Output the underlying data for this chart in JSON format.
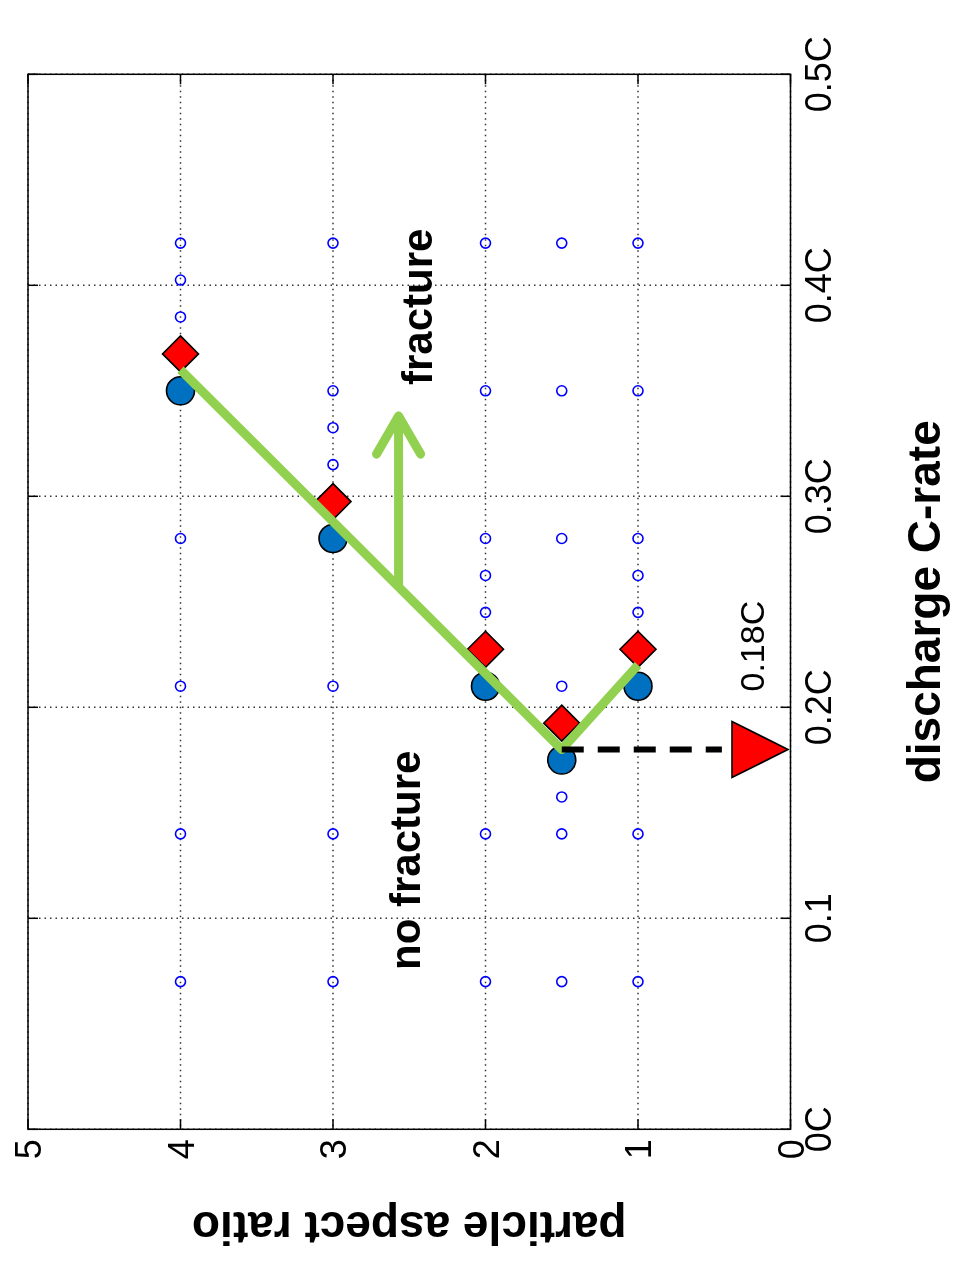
{
  "chart_data": {
    "type": "scatter",
    "xlabel": "particle aspect ratio",
    "ylabel": "discharge C-rate",
    "xlim": [
      5,
      0
    ],
    "ylim": [
      0,
      0.5
    ],
    "xticks": [
      5,
      4,
      3,
      2,
      1,
      0
    ],
    "yticks": [
      {
        "value": 0,
        "label": "0C"
      },
      {
        "value": 0.1,
        "label": "0.1"
      },
      {
        "value": 0.2,
        "label": "0.2C"
      },
      {
        "value": 0.3,
        "label": "0.3C"
      },
      {
        "value": 0.4,
        "label": "0.4C"
      },
      {
        "value": 0.5,
        "label": "0.5C"
      }
    ],
    "grid": true,
    "series": [
      {
        "type": "scatter",
        "marker": "circle",
        "color": "#0000ff",
        "x": [
          4,
          4,
          4,
          4,
          4,
          4,
          4,
          3,
          3,
          3,
          3,
          3,
          3,
          3,
          2,
          2,
          2,
          2,
          2,
          2,
          2,
          1.5,
          1.5,
          1.5,
          1.5,
          1.5,
          1.5,
          1.5,
          1,
          1,
          1,
          1,
          1,
          1,
          1
        ],
        "values": [
          0.07,
          0.14,
          0.21,
          0.28,
          0.385,
          0.4025,
          0.42,
          0.07,
          0.14,
          0.21,
          0.315,
          0.3325,
          0.35,
          0.42,
          0.07,
          0.14,
          0.245,
          0.2625,
          0.28,
          0.35,
          0.42,
          0.07,
          0.14,
          0.1575,
          0.21,
          0.28,
          0.35,
          0.42,
          0.07,
          0.14,
          0.245,
          0.2625,
          0.28,
          0.35,
          0.42
        ]
      },
      {
        "type": "scatter",
        "marker": "circle",
        "color": "#0070c0",
        "x": [
          4,
          3,
          2,
          1.5,
          1
        ],
        "values": [
          0.35,
          0.28,
          0.21,
          0.175,
          0.21
        ]
      },
      {
        "type": "scatter",
        "marker": "diamond",
        "color": "#ff0000",
        "x": [
          4,
          3,
          2,
          1.5,
          1
        ],
        "values": [
          0.3675,
          0.2975,
          0.2275,
          0.1925,
          0.2275
        ]
      },
      {
        "type": "line",
        "line_style": "solid",
        "color": "#92d050",
        "x": [
          4,
          1.5,
          1
        ],
        "values": [
          0.36,
          0.18,
          0.22
        ]
      },
      {
        "type": "line",
        "line_style": "dashed",
        "color": "#000000",
        "x": [
          1.5,
          0.45
        ],
        "values": [
          0.18,
          0.18
        ]
      },
      {
        "type": "scatter",
        "marker": "triangle",
        "color": "#ff0000",
        "x": [
          0.2
        ],
        "values": [
          0.18
        ]
      }
    ],
    "annotations": [
      "fracture",
      "no fracture",
      {
        "text": "0.18C",
        "x": 0.2,
        "y": 0.18
      }
    ]
  }
}
